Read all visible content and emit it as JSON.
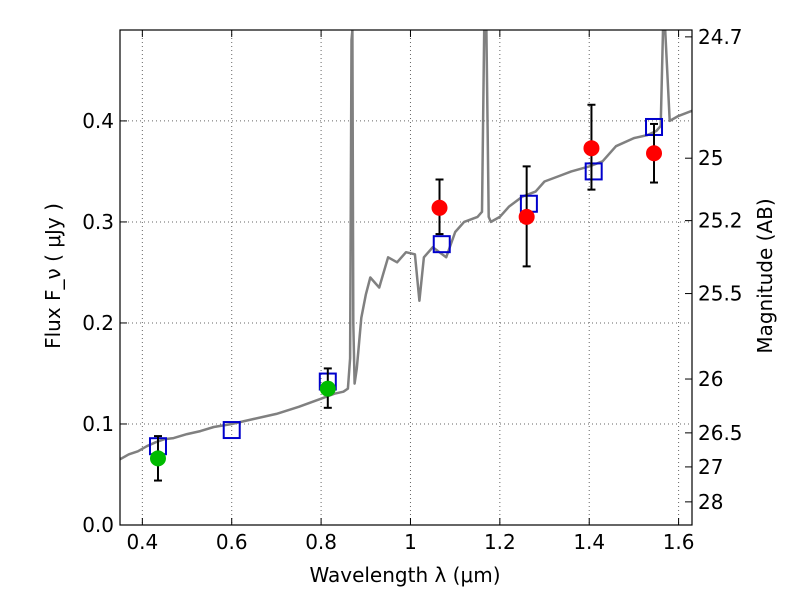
{
  "chart_data": {
    "type": "scatter",
    "title": "",
    "xlabel": "Wavelength  λ (μm)",
    "ylabel": "Flux  F_ν  ( μJy )",
    "ylabel_right": "Magnitude (AB)",
    "xlim": [
      0.35,
      1.63
    ],
    "ylim": [
      0.0,
      0.49
    ],
    "grid": true,
    "legend": "none",
    "x_ticks": [
      0.4,
      0.6,
      0.8,
      1.0,
      1.2,
      1.4,
      1.6
    ],
    "x_tick_labels": [
      "0.4",
      "0.6",
      "0.8",
      "1",
      "1.2",
      "1.4",
      "1.6"
    ],
    "y_ticks": [
      0.0,
      0.1,
      0.2,
      0.3,
      0.4
    ],
    "y_tick_labels": [
      "0.0",
      "0.1",
      "0.2",
      "0.3",
      "0.4"
    ],
    "right_ticks": [
      {
        "flux": 0.4832,
        "label": "24.7"
      },
      {
        "flux": 0.3631,
        "label": "25"
      },
      {
        "flux": 0.3013,
        "label": "25.2"
      },
      {
        "flux": 0.2291,
        "label": "25.5"
      },
      {
        "flux": 0.1445,
        "label": "26"
      },
      {
        "flux": 0.0912,
        "label": "26.5"
      },
      {
        "flux": 0.0575,
        "label": "27"
      },
      {
        "flux": 0.0229,
        "label": "28"
      }
    ],
    "colors": {
      "sed_model": "#808080",
      "model_photometry": "#0000cc",
      "observed_green": "#00bb00",
      "observed_red": "#ff0000",
      "errorbar": "#000000",
      "grid": "#666666"
    },
    "series": [
      {
        "type": "line",
        "x": [
          0.35,
          0.37,
          0.39,
          0.41,
          0.43,
          0.45,
          0.47,
          0.5,
          0.53,
          0.56,
          0.6,
          0.65,
          0.7,
          0.75,
          0.8,
          0.83,
          0.85,
          0.86,
          0.865,
          0.868,
          0.87,
          0.872,
          0.875,
          0.88,
          0.89,
          0.9,
          0.91,
          0.93,
          0.95,
          0.97,
          0.99,
          1.01,
          1.02,
          1.03,
          1.05,
          1.08,
          1.1,
          1.12,
          1.15,
          1.16,
          1.165,
          1.17,
          1.175,
          1.18,
          1.2,
          1.22,
          1.25,
          1.28,
          1.3,
          1.33,
          1.36,
          1.4,
          1.43,
          1.46,
          1.5,
          1.53,
          1.55,
          1.56,
          1.565,
          1.57,
          1.58,
          1.6,
          1.63
        ],
        "y": [
          0.065,
          0.07,
          0.073,
          0.078,
          0.082,
          0.085,
          0.086,
          0.09,
          0.093,
          0.097,
          0.1,
          0.105,
          0.11,
          0.117,
          0.125,
          0.13,
          0.132,
          0.135,
          0.165,
          0.48,
          0.49,
          0.2,
          0.14,
          0.155,
          0.205,
          0.228,
          0.245,
          0.235,
          0.265,
          0.26,
          0.27,
          0.268,
          0.222,
          0.265,
          0.275,
          0.265,
          0.29,
          0.3,
          0.305,
          0.31,
          0.49,
          0.49,
          0.305,
          0.3,
          0.305,
          0.315,
          0.325,
          0.33,
          0.34,
          0.345,
          0.35,
          0.355,
          0.36,
          0.375,
          0.383,
          0.386,
          0.39,
          0.395,
          0.49,
          0.49,
          0.4,
          0.405,
          0.41
        ]
      },
      {
        "type": "open-square",
        "x": [
          0.435,
          0.6,
          0.815,
          1.07,
          1.265,
          1.41,
          1.545
        ],
        "y": [
          0.078,
          0.094,
          0.142,
          0.278,
          0.318,
          0.35,
          0.394
        ]
      },
      {
        "type": "filled-circle",
        "x": [
          0.435,
          0.815
        ],
        "y": [
          0.066,
          0.135
        ],
        "yerr_low": [
          0.022,
          0.019
        ],
        "yerr_high": [
          0.022,
          0.02
        ]
      },
      {
        "type": "filled-circle",
        "x": [
          1.065,
          1.26,
          1.405,
          1.545
        ],
        "y": [
          0.314,
          0.305,
          0.373,
          0.368
        ],
        "yerr_low": [
          0.026,
          0.049,
          0.041,
          0.029
        ],
        "yerr_high": [
          0.028,
          0.05,
          0.043,
          0.029
        ]
      }
    ]
  }
}
